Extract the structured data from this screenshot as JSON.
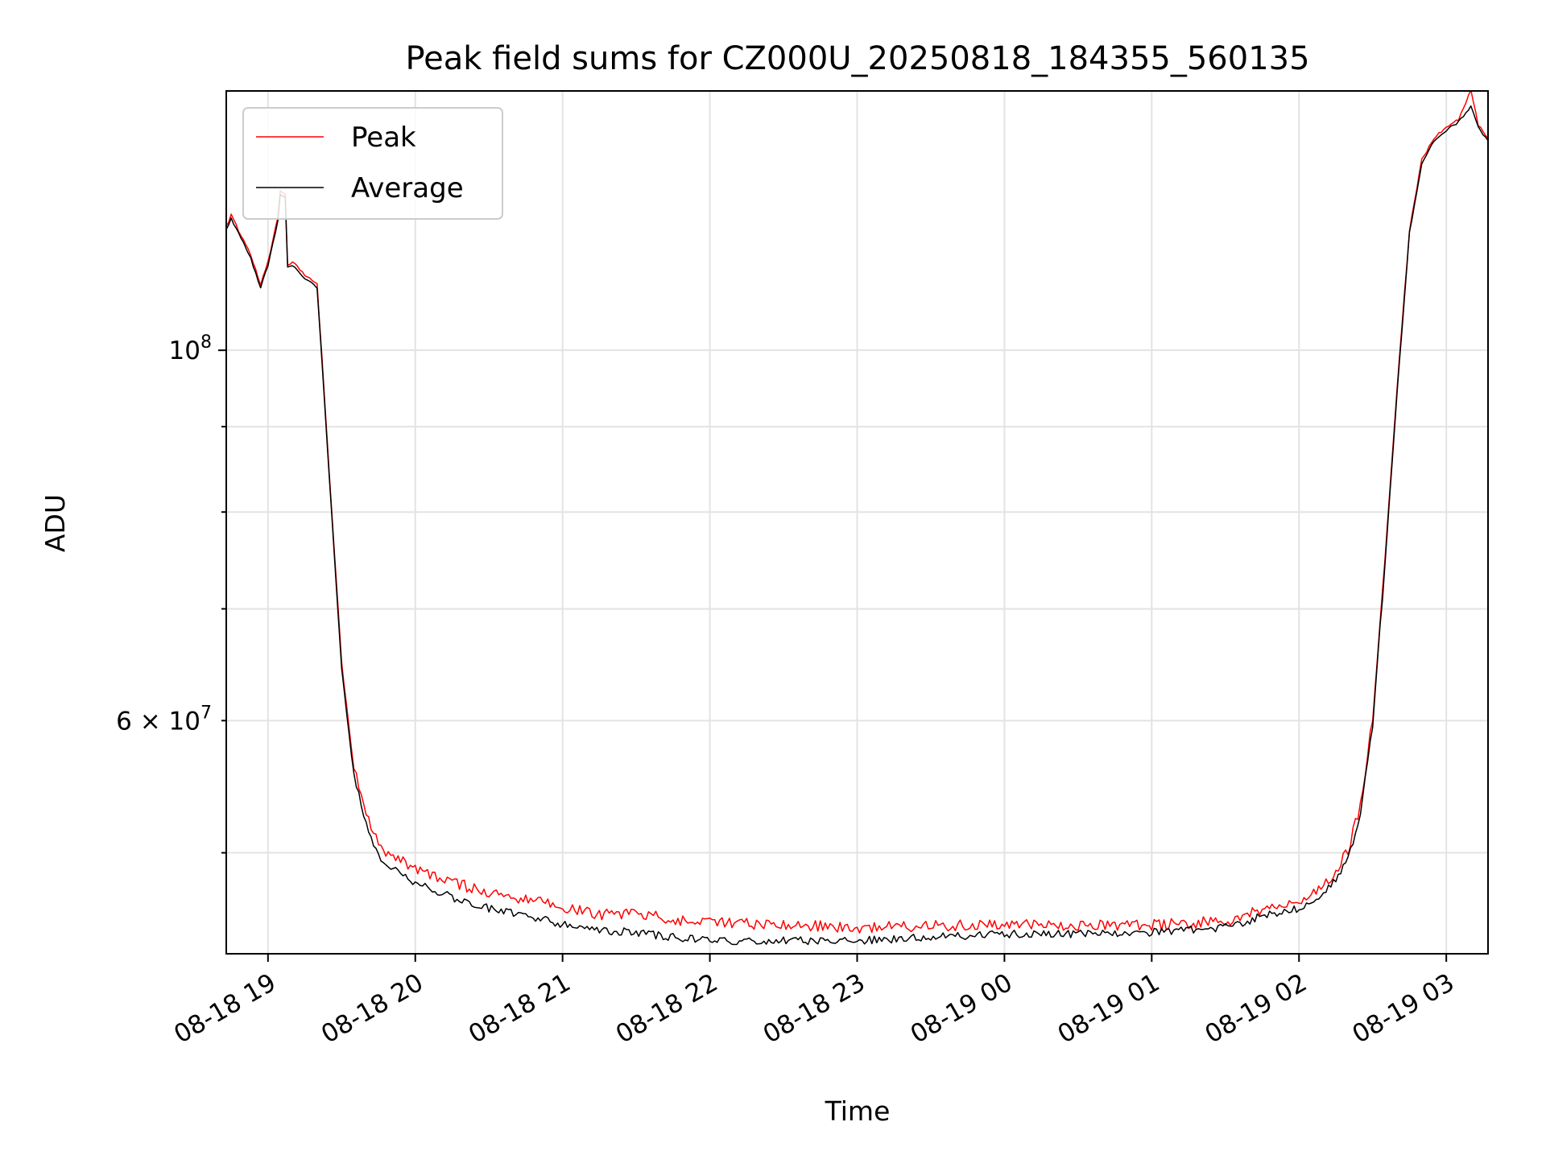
{
  "chart_data": {
    "type": "line",
    "title": "Peak field sums for CZ000U_20250818_184355_560135",
    "xlabel": "Time",
    "ylabel": "ADU",
    "y_scale": "log",
    "grid": true,
    "legend_position": "top-left",
    "x_range": [
      "2025-08-18 18:43",
      "2025-08-19 03:17"
    ],
    "ylim": [
      43500000,
      143000000
    ],
    "x_tick_labels": [
      "08-18 19",
      "08-18 20",
      "08-18 21",
      "08-18 22",
      "08-18 23",
      "08-19 00",
      "08-19 01",
      "08-19 02",
      "08-19 03"
    ],
    "y_tick_labels": [
      {
        "value": 100000000,
        "base": "10",
        "exp": "8"
      },
      {
        "value": 60000000,
        "mantissa": "6",
        "base": "10",
        "exp": "7"
      }
    ],
    "series": [
      {
        "name": "Peak",
        "color": "#ff0000",
        "x": [
          "2025-08-18 18:43",
          "2025-08-18 18:45",
          "2025-08-18 18:48",
          "2025-08-18 18:50",
          "2025-08-18 18:53",
          "2025-08-18 18:57",
          "2025-08-18 19:00",
          "2025-08-18 19:04",
          "2025-08-18 19:05",
          "2025-08-18 19:07",
          "2025-08-18 19:08",
          "2025-08-18 19:10",
          "2025-08-18 19:15",
          "2025-08-18 19:20",
          "2025-08-18 19:22",
          "2025-08-18 19:26",
          "2025-08-18 19:30",
          "2025-08-18 19:35",
          "2025-08-18 19:40",
          "2025-08-18 19:45",
          "2025-08-18 19:50",
          "2025-08-18 20:00",
          "2025-08-18 20:15",
          "2025-08-18 20:30",
          "2025-08-18 20:45",
          "2025-08-18 21:00",
          "2025-08-18 21:15",
          "2025-08-18 21:30",
          "2025-08-18 21:45",
          "2025-08-18 22:00",
          "2025-08-18 22:30",
          "2025-08-18 23:00",
          "2025-08-18 23:30",
          "2025-08-19 00:00",
          "2025-08-19 00:30",
          "2025-08-19 01:00",
          "2025-08-19 01:30",
          "2025-08-19 01:45",
          "2025-08-19 02:00",
          "2025-08-19 02:10",
          "2025-08-19 02:20",
          "2025-08-19 02:25",
          "2025-08-19 02:30",
          "2025-08-19 02:35",
          "2025-08-19 02:40",
          "2025-08-19 02:45",
          "2025-08-19 02:50",
          "2025-08-19 02:55",
          "2025-08-19 03:00",
          "2025-08-19 03:05",
          "2025-08-19 03:10",
          "2025-08-19 03:13",
          "2025-08-19 03:17"
        ],
        "values": [
          118500000,
          120500000,
          118000000,
          116500000,
          114000000,
          109500000,
          113000000,
          120000000,
          124500000,
          124000000,
          112500000,
          113000000,
          111000000,
          109500000,
          99000000,
          80000000,
          65000000,
          56000000,
          52500000,
          50200000,
          49500000,
          48600000,
          47700000,
          47000000,
          46600000,
          46100000,
          45600000,
          45700000,
          45300000,
          45100000,
          45000000,
          44800000,
          44900000,
          45000000,
          44900000,
          44950000,
          45200000,
          45900000,
          46500000,
          47300000,
          49800000,
          53000000,
          60000000,
          75000000,
          95000000,
          118000000,
          130000000,
          134000000,
          136000000,
          137500000,
          143000000,
          136500000,
          134000000
        ]
      },
      {
        "name": "Average",
        "color": "#000000",
        "x": [
          "2025-08-18 18:43",
          "2025-08-18 18:45",
          "2025-08-18 18:48",
          "2025-08-18 18:50",
          "2025-08-18 18:53",
          "2025-08-18 18:57",
          "2025-08-18 19:00",
          "2025-08-18 19:04",
          "2025-08-18 19:05",
          "2025-08-18 19:07",
          "2025-08-18 19:08",
          "2025-08-18 19:10",
          "2025-08-18 19:15",
          "2025-08-18 19:20",
          "2025-08-18 19:22",
          "2025-08-18 19:26",
          "2025-08-18 19:30",
          "2025-08-18 19:35",
          "2025-08-18 19:40",
          "2025-08-18 19:45",
          "2025-08-18 19:50",
          "2025-08-18 20:00",
          "2025-08-18 20:15",
          "2025-08-18 20:30",
          "2025-08-18 20:45",
          "2025-08-18 21:00",
          "2025-08-18 21:15",
          "2025-08-18 21:30",
          "2025-08-18 21:45",
          "2025-08-18 22:00",
          "2025-08-18 22:30",
          "2025-08-18 23:00",
          "2025-08-18 23:30",
          "2025-08-19 00:00",
          "2025-08-19 00:30",
          "2025-08-19 01:00",
          "2025-08-19 01:30",
          "2025-08-19 01:45",
          "2025-08-19 02:00",
          "2025-08-19 02:10",
          "2025-08-19 02:20",
          "2025-08-19 02:25",
          "2025-08-19 02:30",
          "2025-08-19 02:35",
          "2025-08-19 02:40",
          "2025-08-19 02:45",
          "2025-08-19 02:50",
          "2025-08-19 02:55",
          "2025-08-19 03:00",
          "2025-08-19 03:05",
          "2025-08-19 03:10",
          "2025-08-19 03:13",
          "2025-08-19 03:17"
        ],
        "values": [
          118000000,
          120000000,
          117500000,
          116000000,
          113500000,
          109000000,
          112500000,
          119500000,
          124000000,
          123500000,
          112000000,
          112500000,
          110500000,
          109000000,
          98500000,
          79500000,
          64500000,
          55500000,
          52000000,
          49800000,
          49000000,
          48000000,
          47000000,
          46300000,
          45900000,
          45300000,
          44900000,
          44800000,
          44500000,
          44300000,
          44300000,
          44300000,
          44500000,
          44700000,
          44700000,
          44800000,
          45100000,
          45800000,
          46300000,
          47100000,
          49500000,
          52700000,
          59500000,
          74500000,
          94500000,
          117500000,
          129500000,
          133500000,
          135500000,
          137000000,
          140000000,
          136000000,
          133500000
        ]
      }
    ]
  }
}
